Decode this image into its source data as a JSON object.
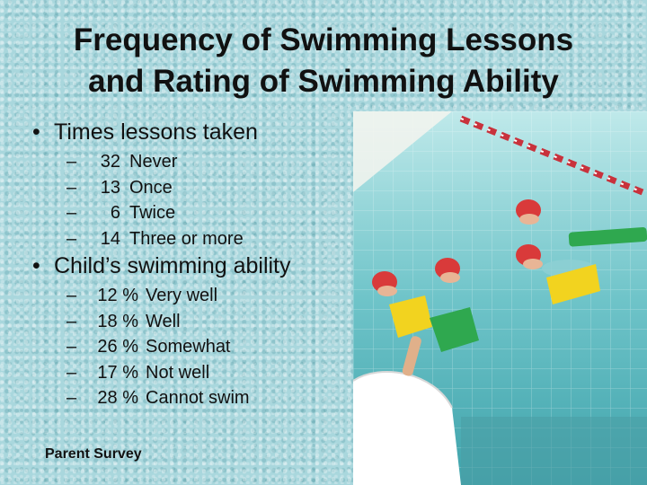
{
  "title": {
    "line1": "Frequency of Swimming Lessons",
    "line2": "and Rating of Swimming Ability"
  },
  "section1": {
    "heading": "Times lessons taken",
    "items": [
      {
        "num": "32",
        "label": "Never"
      },
      {
        "num": "13",
        "label": "Once"
      },
      {
        "num": "6",
        "label": "Twice"
      },
      {
        "num": "14",
        "label": "Three or more"
      }
    ]
  },
  "section2": {
    "heading": "Child’s swimming ability",
    "items": [
      {
        "num": "12 %",
        "label": "Very well"
      },
      {
        "num": "18 %",
        "label": "Well"
      },
      {
        "num": "26 %",
        "label": "Somewhat"
      },
      {
        "num": "17 %",
        "label": "Not well"
      },
      {
        "num": "28 %",
        "label": "Cannot swim"
      }
    ]
  },
  "footer": "Parent Survey",
  "bullet_glyph": "•",
  "dash_glyph": "–",
  "colors": {
    "background": "#a9d7dd",
    "pool_water": "#6fc4c9",
    "lane_rope": "#c8323c",
    "cap": "#d93a3a",
    "kickboard_yellow": "#f2d31f",
    "kickboard_green": "#2fa84f"
  }
}
